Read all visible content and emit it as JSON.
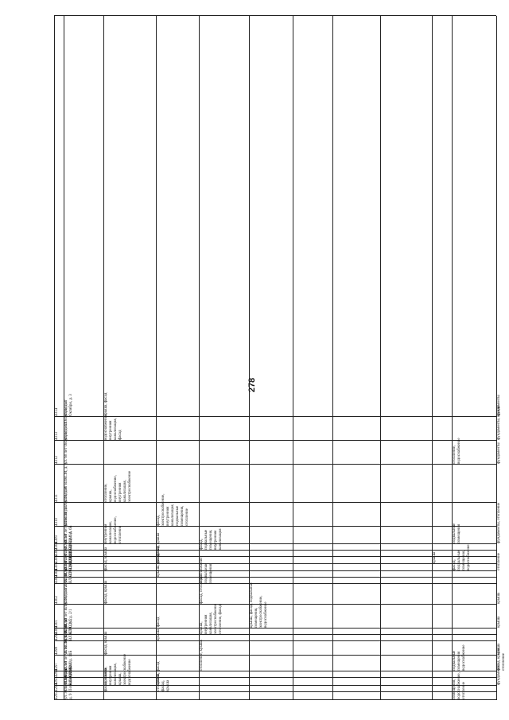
{
  "page_number": "278",
  "table": {
    "rows": [
      {
        "num": "4293",
        "address": "ул. 30 лет Победы, д. 9",
        "c1": "",
        "c2": "",
        "c3": "",
        "c4": "",
        "c5": "",
        "c6": "",
        "c7": "",
        "c8": "",
        "c9": "помещения,\nводоснабжение,\nотопление",
        "c10": ""
      },
      {
        "num": "4294",
        "address": "ул. 30 лет Победы, д. 9А",
        "c1": "фасад, крыша",
        "c2": "отопление, фасад,\nкрыша",
        "c3": "",
        "c4": "",
        "c5": "",
        "c6": "",
        "c7": "",
        "c8": "",
        "c9": "",
        "c10": ""
      },
      {
        "num": "4295",
        "address": "ул. 50 лет ВЛКСМ, д. 10",
        "c1": "отопление,\nвнутренняя\nканализация,\nкрыша,\nэлектроснабжение\nводоснабжение",
        "c2": "крыша, фасад",
        "c3": "",
        "c4": "",
        "c5": "",
        "c6": "",
        "c7": "",
        "c8": "",
        "c9": "",
        "c10": "фундаменты"
      },
      {
        "num": "4296",
        "address": "ул. 50 лет ВЛКСМ, д. 11",
        "c1": "",
        "c2": "",
        "c3": "",
        "c4": "",
        "c5": "",
        "c6": "",
        "c7": "",
        "c8": "",
        "c9": "",
        "c10": ""
      },
      {
        "num": "4297",
        "address": "ул. 50 лет ВЛКСМ, д. 13а",
        "c1": "",
        "c2": "",
        "c3": "отопление, крыша",
        "c4": "",
        "c5": "",
        "c6": "",
        "c7": "",
        "c8": "",
        "c9": "подвальные\nпомещения\nводоснабжение",
        "c10": "фасад, крыша, отопление"
      },
      {
        "num": "4298",
        "address": "ул. 50 лет ВЛКСМ, д. 1Б",
        "c1": "фасад, крыша",
        "c2": "",
        "c3": "",
        "c4": "",
        "c5": "",
        "c6": "",
        "c7": "",
        "c8": "",
        "c9": "",
        "c10": "крыша"
      },
      {
        "num": "4299",
        "address": "ул. 50 лет ВЛКСМ, д. 2",
        "c1": "",
        "c2": "крыша, фасад",
        "c3": "",
        "c4": "",
        "c5": "",
        "c6": "",
        "c7": "",
        "c8": "",
        "c9": "",
        "c10": ""
      },
      {
        "num": "4300",
        "address": "ул. 50 лет ВЛКСМ, д. 2/1",
        "c1": "",
        "c2": "",
        "c3": "крыша,\nвнутренняя\nканализация,\nэлектроснабжение,\nотопление, фасад",
        "c4": "",
        "c5": "",
        "c6": "",
        "c7": "",
        "c8": "",
        "c9": "",
        "c10": ""
      },
      {
        "num": "4301",
        "address": "ул. 50 лет ВЛКСМ, д. 2/2",
        "c1": "",
        "c2": "",
        "c3": "",
        "c4": "крыша, фасад, подвальные\nпомещения, электроснабжение, водоснабжение",
        "c5": "",
        "c6": "",
        "c7": "",
        "c8": "",
        "c9": "",
        "c10": "крыша"
      },
      {
        "num": "4302",
        "address": "ул. 50 лет ВЛКСМ, д. 3",
        "c1": "фасад, крыша",
        "c2": "",
        "c3": "фасад, отопление",
        "c4": "",
        "c5": "",
        "c6": "",
        "c7": "",
        "c8": "",
        "c9": "",
        "c10": "крыша"
      },
      {
        "num": "4303",
        "address": "ул. 50 лет ВЛКСМ, д. 4",
        "c1": "",
        "c2": "",
        "c3": "водоснабжение,\nподвальные\nпомещения",
        "c4": "",
        "c5": "",
        "c6": "",
        "c7": "",
        "c8": "",
        "c9": "",
        "c10": ""
      },
      {
        "num": "4304",
        "address": "ул. 50 лет ВЛКСМ, д. 4/1",
        "c1": "",
        "c2": "крыша, фасад",
        "c3": "",
        "c4": "",
        "c5": "",
        "c6": "",
        "c7": "",
        "c8": "",
        "c9": "",
        "c10": ""
      },
      {
        "num": "4305",
        "address": "ул. 50 лет ВЛКСМ, д. 5",
        "c1": "фасад, крыша",
        "c2": "",
        "c3": "",
        "c4": "",
        "c5": "",
        "c6": "",
        "c7": "",
        "c8": "",
        "c9": "фасад,\nподвальные\nпомещения,\nводоснабжение",
        "c10": "отопление"
      },
      {
        "num": "4306",
        "address": "ул. 50 лет ВЛКСМ, д. 5а",
        "c1": "",
        "c2": "отопление",
        "c3": "",
        "c4": "",
        "c5": "",
        "c6": "",
        "c7": "",
        "c8": "крыша",
        "c9": "",
        "c10": ""
      },
      {
        "num": "4307",
        "address": "ул. 50 лет ВЛКСМ, д. 6А",
        "c1": "",
        "c2": "фасад, крыша",
        "c3": "",
        "c4": "",
        "c5": "",
        "c6": "",
        "c7": "",
        "c8": "",
        "c9": "",
        "c10": ""
      },
      {
        "num": "4308",
        "address": "ул. 50 лет ВЛКСМ, д. 6Б",
        "c1": "",
        "c2": "",
        "c3": "фасад, подвальные\nпомещения,\nвнутренняя\nканализация",
        "c4": "",
        "c5": "",
        "c6": "",
        "c7": "",
        "c8": "",
        "c9": "",
        "c10": ""
      },
      {
        "num": "4309",
        "address": "ул. 50 лет ВЛКСМ, д. 7",
        "c1": "внутренняя\nканализация,\nводоснабжение,\nотопление",
        "c2": "",
        "c3": "",
        "c4": "",
        "c5": "",
        "c6": "",
        "c7": "",
        "c8": "",
        "c9": "подвальные\nпомещения",
        "c10": "фундаменты, отопление"
      },
      {
        "num": "4310",
        "address": "ул. 50 лет ВЛКСМ, д. 8",
        "c1": "",
        "c2": "фасад,\nэлектроснабжение,\nвнутренняя\nканализация,\nподвальные\nпомещения,\nотопление",
        "c3": "",
        "c4": "",
        "c5": "",
        "c6": "",
        "c7": "",
        "c8": "",
        "c9": "",
        "c10": ""
      },
      {
        "num": "4311",
        "address": "ул. 50 лет ВЛКСМ, д. 9",
        "c1": "отопление,\nкрыша,\nводоснабжение,\nвнутренняя\nканализация,\nэлектроснабжение",
        "c2": "",
        "c3": "",
        "c4": "",
        "c5": "",
        "c6": "",
        "c7": "",
        "c8": "",
        "c9": "",
        "c10": ""
      },
      {
        "num": "4312",
        "address": "ул. 60 лет Октября, д. 14",
        "c1": "",
        "c2": "",
        "c3": "",
        "c4": "",
        "c5": "",
        "c6": "",
        "c7": "",
        "c8": "",
        "c9": "отопление,\nводоснабжение",
        "c10": "фундаменты"
      },
      {
        "num": "4313",
        "address": "ул. 60 лет Октября, д. 2",
        "c1": "водоснабжение,\nвнутренняя\nканализация,\nфасад",
        "c2": "",
        "c3": "",
        "c4": "",
        "c5": "",
        "c6": "",
        "c7": "",
        "c8": "",
        "c9": "",
        "c10": "фундаменты, крыша"
      },
      {
        "num": "4314",
        "address": "ул. 60 лет Октября, д. 3",
        "c1": "крыша, фасад",
        "c2": "",
        "c3": "",
        "c4": "",
        "c5": "",
        "c6": "",
        "c7": "",
        "c8": "",
        "c9": "",
        "c10": "фундаменты"
      }
    ]
  }
}
